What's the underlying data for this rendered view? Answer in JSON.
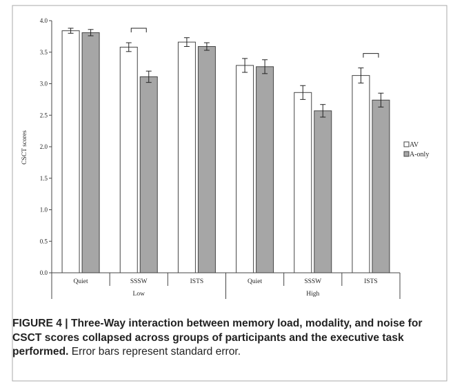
{
  "chart_data": {
    "type": "bar",
    "ylabel": "CSCT scores",
    "ylim": [
      0,
      4
    ],
    "yticks": [
      "0.0",
      "0.5",
      "1.0",
      "1.5",
      "2.0",
      "2.5",
      "3.0",
      "3.5",
      "4.0"
    ],
    "categories": [
      "Quiet",
      "SSSW",
      "ISTS",
      "Quiet",
      "SSSW",
      "ISTS"
    ],
    "groups": [
      {
        "label": "Low",
        "span": 3
      },
      {
        "label": "High",
        "span": 3
      }
    ],
    "series": [
      {
        "name": "AV",
        "color": "#ffffff",
        "values": [
          3.84,
          3.58,
          3.66,
          3.29,
          2.86,
          3.13
        ],
        "errors": [
          0.04,
          0.07,
          0.07,
          0.11,
          0.11,
          0.12
        ]
      },
      {
        "name": "A-only",
        "color": "#a6a6a6",
        "values": [
          3.81,
          3.11,
          3.59,
          3.27,
          2.57,
          2.74
        ],
        "errors": [
          0.05,
          0.09,
          0.06,
          0.11,
          0.1,
          0.11
        ]
      }
    ],
    "significance_brackets": [
      1,
      5
    ],
    "legend": "right",
    "grid": false
  },
  "caption": {
    "bold": "FIGURE 4 | Three-Way interaction between memory load, modality, and noise for CSCT scores collapsed across groups of participants and the executive task performed.",
    "normal": " Error bars represent standard error."
  }
}
